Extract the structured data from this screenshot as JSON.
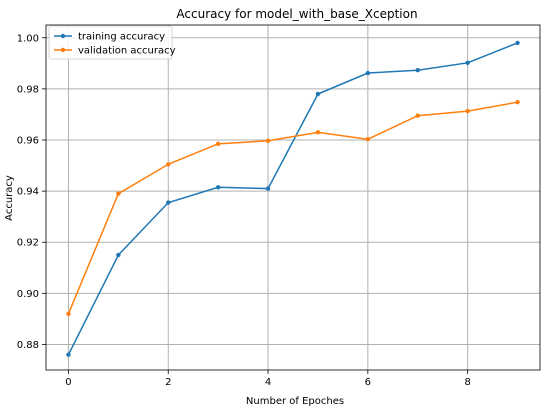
{
  "chart_data": {
    "type": "line",
    "title": "Accuracy for model_with_base_Xception",
    "xlabel": "Number of Epoches",
    "ylabel": "Accuracy",
    "xlim": [
      -0.45,
      9.45
    ],
    "ylim": [
      0.87,
      1.005
    ],
    "grid": true,
    "legend_position": "top-left",
    "x_ticks": [
      0,
      2,
      4,
      6,
      8
    ],
    "y_ticks": [
      0.88,
      0.9,
      0.92,
      0.94,
      0.96,
      0.98,
      1.0
    ],
    "x_tick_labels": [
      "0",
      "2",
      "4",
      "6",
      "8"
    ],
    "y_tick_labels": [
      "0.88",
      "0.90",
      "0.92",
      "0.94",
      "0.96",
      "0.98",
      "1.00"
    ],
    "x": [
      0,
      1,
      2,
      3,
      4,
      5,
      6,
      7,
      8,
      9
    ],
    "series": [
      {
        "name": "training accuracy",
        "color": "#1f77b4",
        "values": [
          0.876,
          0.915,
          0.9355,
          0.9415,
          0.941,
          0.978,
          0.9862,
          0.9873,
          0.9902,
          0.998
        ]
      },
      {
        "name": "validation accuracy",
        "color": "#ff7f0e",
        "values": [
          0.892,
          0.939,
          0.9505,
          0.9585,
          0.9597,
          0.963,
          0.9603,
          0.9695,
          0.9713,
          0.9748
        ]
      }
    ]
  }
}
